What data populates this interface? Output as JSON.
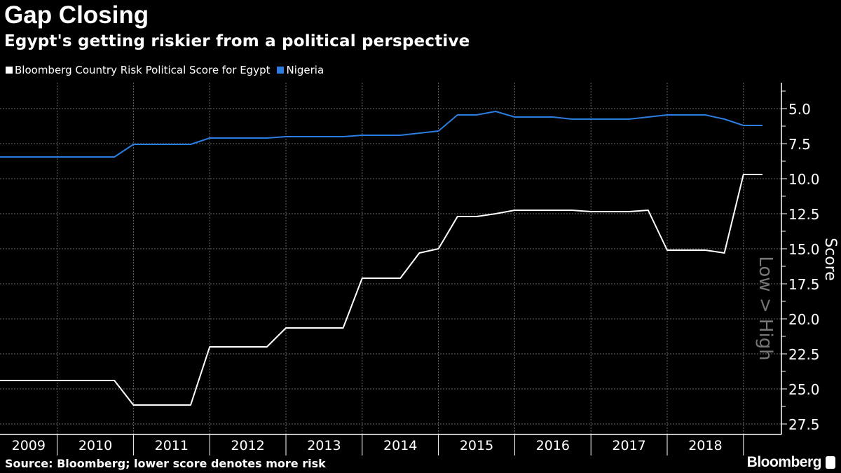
{
  "title": "Gap Closing",
  "subtitle": "Egypt's getting riskier from a political perspective",
  "source": "Source: Bloomberg; lower score denotes more risk",
  "brand": "Bloomberg",
  "chart_data": {
    "type": "line",
    "title": "Gap Closing",
    "ylabel": "Score",
    "yannotation": "Low > High",
    "ylim": [
      28.5,
      3.5
    ],
    "y_inverted": true,
    "yticks": [
      5.0,
      7.5,
      10.0,
      12.5,
      15.0,
      17.5,
      20.0,
      22.5,
      25.0,
      27.5
    ],
    "ytick_labels": [
      "5.0",
      "7.5",
      "10.0",
      "12.5",
      "15.0",
      "17.5",
      "20.0",
      "22.5",
      "25.0",
      "27.5"
    ],
    "x_start": 2009.25,
    "x_step": 0.25,
    "xlim": [
      2009.25,
      2019.5
    ],
    "xtick_labels": [
      "2009",
      "2010",
      "2011",
      "2012",
      "2013",
      "2014",
      "2015",
      "2016",
      "2017",
      "2018"
    ],
    "grid": true,
    "legend_position": "top-left",
    "series": [
      {
        "name": "Bloomberg Country Risk Political Score for Egypt",
        "color": "#ffffff",
        "values": [
          24.4,
          24.4,
          24.4,
          24.4,
          24.4,
          24.4,
          24.4,
          26.15,
          26.15,
          26.15,
          26.15,
          22.0,
          22.0,
          22.0,
          22.0,
          20.65,
          20.65,
          20.65,
          20.65,
          17.1,
          17.1,
          17.1,
          15.3,
          15.0,
          12.7,
          12.7,
          12.5,
          12.25,
          12.25,
          12.25,
          12.25,
          12.35,
          12.35,
          12.35,
          12.25,
          15.1,
          15.1,
          15.1,
          15.3,
          9.7,
          9.7
        ]
      },
      {
        "name": "Nigeria",
        "color": "#2b7de0",
        "values": [
          8.45,
          8.45,
          8.45,
          8.45,
          8.45,
          8.45,
          8.45,
          7.55,
          7.55,
          7.55,
          7.55,
          7.1,
          7.1,
          7.1,
          7.1,
          7.0,
          7.0,
          7.0,
          7.0,
          6.9,
          6.9,
          6.9,
          6.75,
          6.6,
          5.45,
          5.45,
          5.2,
          5.6,
          5.6,
          5.6,
          5.75,
          5.75,
          5.75,
          5.75,
          5.6,
          5.45,
          5.45,
          5.45,
          5.75,
          6.2,
          6.2
        ]
      }
    ]
  }
}
